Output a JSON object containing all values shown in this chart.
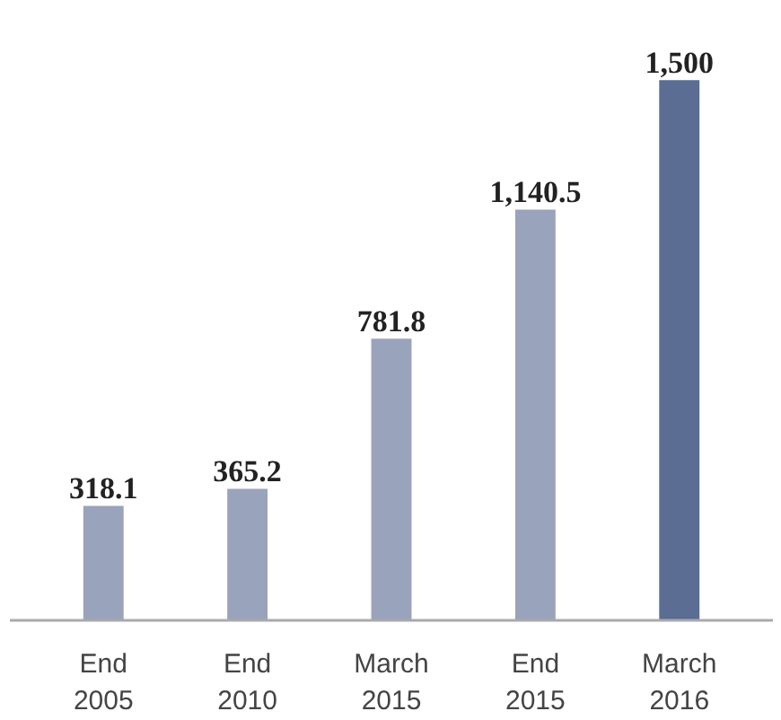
{
  "chart_data": {
    "type": "bar",
    "categories": [
      "End\n2005",
      "End\n2010",
      "March\n2015",
      "End\n2015",
      "March\n2016"
    ],
    "values": [
      318.1,
      365.2,
      781.8,
      1140.5,
      1500
    ],
    "value_labels": [
      "318.1",
      "365.2",
      "781.8",
      "1,140.5",
      "1,500"
    ],
    "colors": [
      "#9aa3bc",
      "#9aa3bc",
      "#9aa3bc",
      "#9aa3bc",
      "#5b6d93"
    ]
  }
}
